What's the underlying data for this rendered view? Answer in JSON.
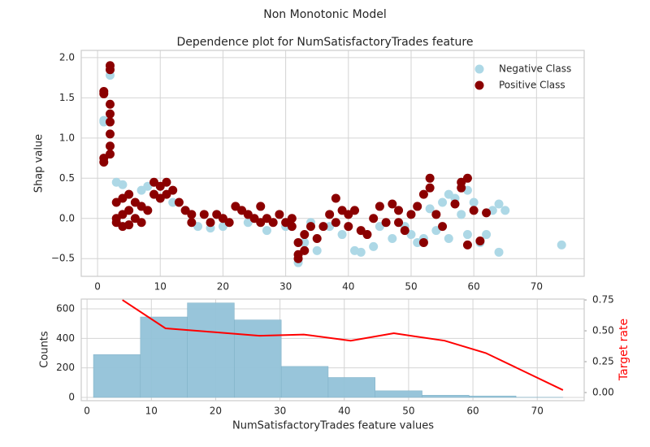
{
  "title": "Non Monotonic Model",
  "chart_data": [
    {
      "type": "scatter",
      "title": "Dependence plot for NumSatisfactoryTrades feature",
      "ylabel": "Shap value",
      "xlim": [
        -2.6,
        77.6
      ],
      "ylim": [
        -0.72,
        2.09
      ],
      "xticks": [
        0,
        10,
        20,
        30,
        40,
        50,
        60,
        70
      ],
      "yticks": [
        {
          "value": -0.5,
          "label": "−0.5"
        },
        {
          "value": 0,
          "label": "0.0"
        },
        {
          "value": 0.5,
          "label": "0.5"
        },
        {
          "value": 1,
          "label": "1.0"
        },
        {
          "value": 1.5,
          "label": "1.5"
        },
        {
          "value": 2,
          "label": "2.0"
        }
      ],
      "grid": true,
      "legend": "upper right",
      "series": [
        {
          "name": "Negative Class",
          "color": "#add8e6",
          "x": [
            1,
            1,
            2,
            2,
            3,
            4,
            5,
            7,
            8,
            9,
            10,
            12,
            14,
            16,
            18,
            20,
            24,
            27,
            30,
            32,
            33,
            34,
            35,
            37,
            39,
            41,
            42,
            44,
            45,
            47,
            49,
            50,
            51,
            52,
            53,
            54,
            55,
            56,
            56,
            57,
            58,
            59,
            59,
            60,
            61,
            62,
            63,
            64,
            64,
            65,
            74
          ],
          "values": [
            1.2,
            1.22,
            1.78,
            1.85,
            0.45,
            0.42,
            0.3,
            0.35,
            0.4,
            0.3,
            0.25,
            0.2,
            0.1,
            -0.1,
            -0.12,
            -0.1,
            -0.05,
            -0.15,
            -0.1,
            -0.55,
            -0.3,
            -0.05,
            -0.4,
            -0.1,
            -0.2,
            -0.4,
            -0.42,
            -0.35,
            -0.1,
            -0.25,
            -0.1,
            -0.2,
            -0.3,
            -0.25,
            0.12,
            -0.15,
            0.2,
            -0.25,
            0.3,
            0.25,
            0.05,
            0.35,
            -0.2,
            0.2,
            -0.3,
            -0.2,
            0.1,
            0.18,
            -0.42,
            0.1,
            -0.33
          ]
        },
        {
          "name": "Positive Class",
          "color": "#8b0000",
          "x": [
            1,
            1,
            1,
            1,
            2,
            2,
            2,
            2,
            2,
            2,
            2,
            2,
            3,
            3,
            3,
            4,
            4,
            4,
            5,
            5,
            5,
            6,
            6,
            7,
            7,
            8,
            9,
            9,
            10,
            10,
            11,
            11,
            12,
            13,
            14,
            15,
            15,
            17,
            18,
            19,
            20,
            21,
            22,
            23,
            24,
            25,
            26,
            26,
            27,
            28,
            29,
            30,
            31,
            31,
            32,
            32,
            32,
            33,
            33,
            34,
            35,
            36,
            37,
            38,
            38,
            39,
            40,
            40,
            41,
            42,
            43,
            44,
            45,
            46,
            47,
            48,
            48,
            49,
            50,
            51,
            52,
            52,
            53,
            53,
            54,
            55,
            57,
            58,
            58,
            59,
            59,
            60,
            61,
            62
          ],
          "values": [
            1.55,
            1.58,
            0.75,
            0.7,
            1.9,
            1.85,
            1.42,
            1.05,
            1.2,
            1.3,
            0.9,
            0.8,
            0.2,
            0.0,
            -0.05,
            0.25,
            0.05,
            -0.1,
            0.3,
            0.1,
            -0.08,
            0.2,
            0.0,
            0.15,
            -0.05,
            0.1,
            0.45,
            0.3,
            0.4,
            0.25,
            0.45,
            0.3,
            0.35,
            0.2,
            0.1,
            0.05,
            -0.05,
            0.05,
            -0.05,
            0.05,
            0.0,
            -0.05,
            0.15,
            0.1,
            0.05,
            0.0,
            0.15,
            -0.05,
            0.0,
            -0.05,
            0.05,
            -0.05,
            0.0,
            -0.1,
            -0.3,
            -0.45,
            -0.5,
            -0.2,
            -0.4,
            -0.1,
            -0.25,
            -0.1,
            0.05,
            -0.05,
            0.25,
            0.1,
            0.05,
            -0.1,
            0.1,
            -0.15,
            -0.2,
            0.0,
            0.15,
            -0.05,
            0.18,
            0.1,
            -0.05,
            -0.15,
            0.05,
            0.15,
            -0.3,
            0.3,
            0.5,
            0.38,
            0.05,
            -0.1,
            0.18,
            0.45,
            0.38,
            0.5,
            -0.33,
            0.1,
            -0.28,
            0.07
          ]
        }
      ]
    },
    {
      "type": "histogram",
      "xlabel": "NumSatisfactoryTrades feature values",
      "ylabel": "Counts",
      "y2label": "Target rate",
      "xlim": [
        -0.9,
        77.3
      ],
      "ylim": [
        -22,
        666
      ],
      "y2lim": [
        -0.066,
        0.757
      ],
      "xticks": [
        0,
        10,
        20,
        30,
        40,
        50,
        60,
        70
      ],
      "yticks": [
        0,
        200,
        400,
        600
      ],
      "y2ticks": [
        {
          "value": 0,
          "label": "0.00"
        },
        {
          "value": 0.25,
          "label": "0.25"
        },
        {
          "value": 0.5,
          "label": "0.50"
        },
        {
          "value": 0.75,
          "label": "0.75"
        }
      ],
      "grid": true,
      "color": "#92c2d8",
      "bins": [
        1,
        8.3,
        15.6,
        22.9,
        30.2,
        37.5,
        44.8,
        52.1,
        59.4,
        66.7,
        74
      ],
      "values": [
        290,
        545,
        640,
        525,
        210,
        135,
        45,
        15,
        10,
        1
      ],
      "line": {
        "color": "#ff0000",
        "axis": "y2",
        "x": [
          5.5,
          12.2,
          19.5,
          26.8,
          33.7,
          41,
          47.7,
          55.6,
          62,
          74
        ],
        "values": [
          0.75,
          0.52,
          0.49,
          0.46,
          0.47,
          0.42,
          0.48,
          0.42,
          0.32,
          0.02
        ]
      }
    }
  ]
}
